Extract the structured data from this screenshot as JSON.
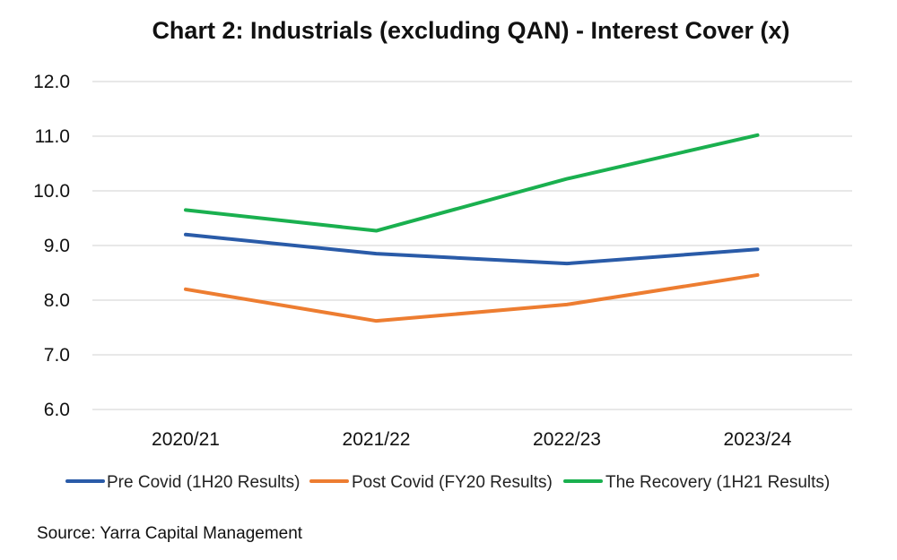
{
  "chart_data": {
    "type": "line",
    "title": "Chart 2: Industrials (excluding QAN) - Interest Cover (x)",
    "xlabel": "",
    "ylabel": "",
    "categories": [
      "2020/21",
      "2021/22",
      "2022/23",
      "2023/24"
    ],
    "ylim": [
      6.0,
      12.0
    ],
    "yticks": [
      "6.0",
      "7.0",
      "8.0",
      "9.0",
      "10.0",
      "11.0",
      "12.0"
    ],
    "grid": true,
    "legend_position": "bottom",
    "series": [
      {
        "name": "Pre Covid (1H20 Results)",
        "color": "#2a5ba8",
        "values": [
          9.2,
          8.85,
          8.67,
          8.93
        ]
      },
      {
        "name": "Post Covid (FY20 Results)",
        "color": "#ed7d31",
        "values": [
          8.2,
          7.62,
          7.92,
          8.46
        ]
      },
      {
        "name": "The Recovery (1H21 Results)",
        "color": "#1ab04f",
        "values": [
          9.65,
          9.27,
          10.22,
          11.02
        ]
      }
    ]
  },
  "source": "Source: Yarra Capital Management"
}
